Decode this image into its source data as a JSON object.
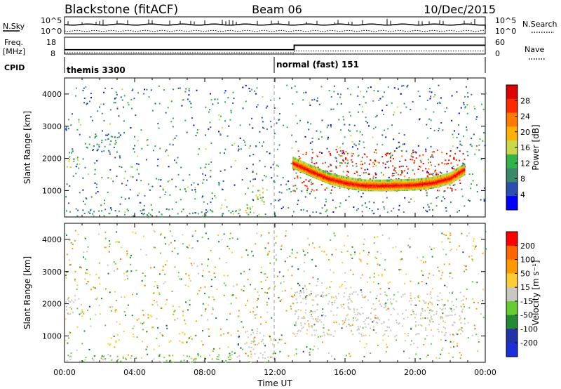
{
  "header": {
    "station": "Blackstone (fitACF)",
    "beam": "Beam 06",
    "date": "10/Dec/2015"
  },
  "summary_panels": {
    "nsky_label": "N.Sky",
    "nsearch_label": "N.Search",
    "freq_label_line1": "Freq.",
    "freq_label_line2": "[MHz]",
    "nave_label": "Nave",
    "cpid_label": "CPID",
    "left_ticks_noise": [
      "10^5",
      "10^0"
    ],
    "right_ticks_noise": [
      "10^5",
      "10^0"
    ],
    "left_ticks_freq": [
      "18",
      "8"
    ],
    "right_ticks_freq": [
      "60",
      "0"
    ],
    "cpid_segments": [
      {
        "name": "themis 3300",
        "start_hour": 0,
        "end_hour": 12
      },
      {
        "name": "normal (fast) 151",
        "start_hour": 12,
        "end_hour": 24
      }
    ],
    "freq_step": {
      "before_mhz": 10,
      "after_mhz": 14,
      "change_hour": 13.1
    },
    "nave_step": {
      "before": 5,
      "after": 12,
      "change_hour": 13.1
    }
  },
  "colors": {
    "power_scale": [
      "#0000ff",
      "#2a4fb0",
      "#3a8a6a",
      "#33b34a",
      "#c8d84a",
      "#ffb000",
      "#ff7a00",
      "#ff2a00",
      "#dd0000"
    ],
    "velocity_scale": [
      "#ff0000",
      "#ff6600",
      "#ff9900",
      "#ffcc33",
      "#c8c8c0",
      "#66cc33",
      "#228833",
      "#2233aa",
      "#1a2fd8"
    ]
  },
  "chart_data": [
    {
      "type": "heatmap",
      "panel": "power",
      "xlabel": "",
      "ylabel": "Slant Range [km]",
      "x_ticks": [
        "00:00",
        "04:00",
        "08:00",
        "12:00",
        "16:00",
        "20:00",
        "00:00"
      ],
      "y_ticks": [
        1000,
        2000,
        3000,
        4000
      ],
      "xlim": [
        0,
        24
      ],
      "ylim": [
        180,
        4500
      ],
      "colorbar_label": "Power [dB]",
      "colorbar_ticks": [
        "4",
        "8",
        "12",
        "16",
        "20",
        "24",
        "28"
      ],
      "colorbar_range": [
        0,
        30
      ],
      "regions": [
        {
          "t0": 0.0,
          "t1": 1.0,
          "r0": 1700,
          "r1": 2200,
          "power": 14
        },
        {
          "t0": 1.2,
          "t1": 3.0,
          "r0": 2200,
          "r1": 2800,
          "power": 8
        },
        {
          "t0": 6.5,
          "t1": 7.0,
          "r0": 850,
          "r1": 1200,
          "power": 12
        },
        {
          "t0": 10.3,
          "t1": 11.3,
          "r0": 300,
          "r1": 1300,
          "power": 14
        },
        {
          "t0": 13.0,
          "t1": 22.8,
          "r0": 1000,
          "r1": 2300,
          "power": 26
        },
        {
          "t0": 0.0,
          "t1": 12.0,
          "r0": 200,
          "r1": 450,
          "power": 10
        }
      ],
      "echo_trace": {
        "hours": [
          13.0,
          14.0,
          15.0,
          16.0,
          17.0,
          18.0,
          19.0,
          20.0,
          21.0,
          22.0,
          22.8
        ],
        "range_km": [
          1900,
          1650,
          1420,
          1280,
          1200,
          1190,
          1200,
          1220,
          1280,
          1420,
          1700
        ]
      }
    },
    {
      "type": "heatmap",
      "panel": "velocity",
      "xlabel": "Time UT",
      "ylabel": "Slant Range [km]",
      "x_ticks": [
        "00:00",
        "04:00",
        "08:00",
        "12:00",
        "16:00",
        "20:00",
        "00:00"
      ],
      "y_ticks": [
        1000,
        2000,
        3000,
        4000
      ],
      "xlim": [
        0,
        24
      ],
      "ylim": [
        180,
        4500
      ],
      "colorbar_label": "Velocity [m s⁻¹]",
      "colorbar_ticks": [
        "200",
        "100",
        "50",
        "15",
        "-15",
        "-50",
        "-100",
        "-200"
      ],
      "colorbar_range": [
        -250,
        250
      ],
      "regions": [
        {
          "t0": 0.0,
          "t1": 1.0,
          "r0": 1700,
          "r1": 2200,
          "velocity": 0
        },
        {
          "t0": 2.0,
          "t1": 3.0,
          "r0": 650,
          "r1": 850,
          "velocity": -60
        },
        {
          "t0": 5.8,
          "t1": 7.2,
          "r0": 800,
          "r1": 1150,
          "velocity": -50
        },
        {
          "t0": 10.2,
          "t1": 11.4,
          "r0": 300,
          "r1": 1300,
          "velocity": 0
        },
        {
          "t0": 13.0,
          "t1": 22.8,
          "r0": 1000,
          "r1": 2400,
          "velocity": 0
        },
        {
          "t0": 0.0,
          "t1": 12.0,
          "r0": 200,
          "r1": 450,
          "velocity": 30
        }
      ]
    }
  ]
}
